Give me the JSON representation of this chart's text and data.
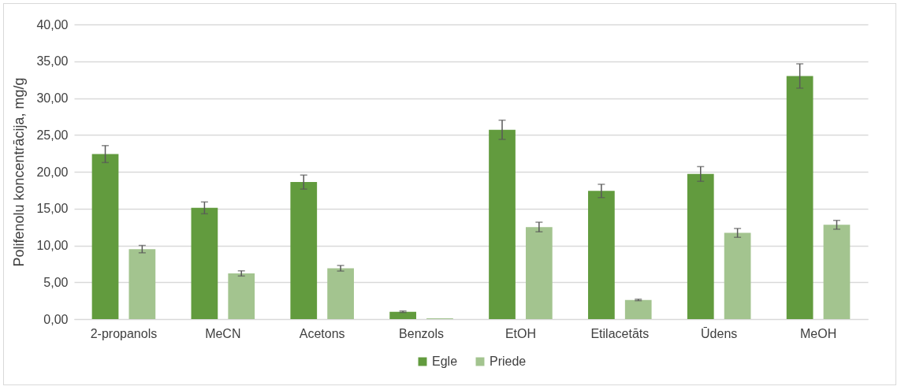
{
  "chart_data": {
    "type": "bar",
    "ylabel": "Polifenolu koncentrācija, mg/g",
    "categories": [
      "2-propanols",
      "MeCN",
      "Acetons",
      "Benzols",
      "EtOH",
      "Etilacetāts",
      "Ūdens",
      "MeOH"
    ],
    "series": [
      {
        "name": "Egle",
        "color": "#629b3e",
        "values": [
          22.4,
          15.1,
          18.6,
          1.0,
          25.7,
          17.4,
          19.7,
          33.0
        ],
        "errors": [
          1.15,
          0.8,
          0.95,
          0.1,
          1.3,
          0.9,
          1.0,
          1.65
        ]
      },
      {
        "name": "Priede",
        "color": "#a3c48f",
        "values": [
          9.5,
          6.2,
          6.9,
          0.1,
          12.5,
          2.6,
          11.7,
          12.8
        ],
        "errors": [
          0.5,
          0.35,
          0.38,
          null,
          0.65,
          0.1,
          0.6,
          0.6
        ]
      }
    ],
    "ylim": [
      0,
      40
    ],
    "yticks": [
      {
        "value": 0,
        "label": "0,00"
      },
      {
        "value": 5,
        "label": "5,00"
      },
      {
        "value": 10,
        "label": "10,00"
      },
      {
        "value": 15,
        "label": "15,00"
      },
      {
        "value": 20,
        "label": "20,00"
      },
      {
        "value": 25,
        "label": "25,00"
      },
      {
        "value": 30,
        "label": "30,00"
      },
      {
        "value": 35,
        "label": "35,00"
      },
      {
        "value": 40,
        "label": "40,00"
      }
    ],
    "grid": "y",
    "legend": "bottom"
  }
}
